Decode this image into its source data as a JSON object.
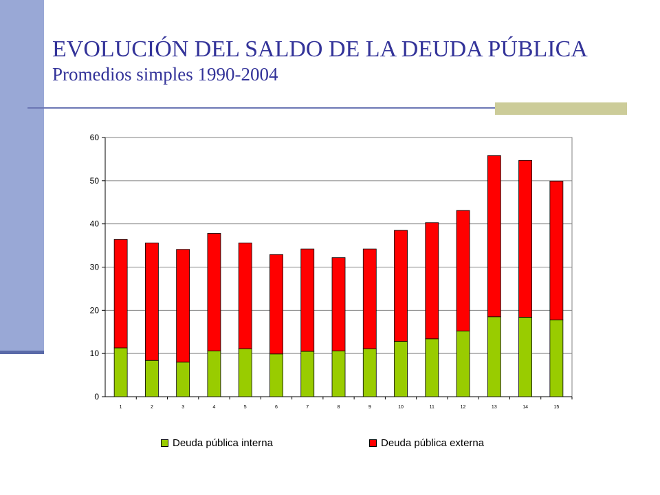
{
  "title": "EVOLUCIÓN DEL SALDO DE LA DEUDA PÚBLICA",
  "subtitle": "Promedios simples 1990-2004",
  "colors": {
    "accent_bar": "#99a8d6",
    "title_text": "#333399",
    "interna": "#99cc00",
    "externa": "#ff0000"
  },
  "chart_data": {
    "type": "bar",
    "stacked": true,
    "categories": [
      "1",
      "2",
      "3",
      "4",
      "5",
      "6",
      "7",
      "8",
      "9",
      "10",
      "11",
      "12",
      "13",
      "14",
      "15"
    ],
    "series": [
      {
        "name": "Deuda pública interna",
        "color": "#99cc00",
        "values": [
          11.3,
          8.4,
          8.0,
          10.6,
          11.1,
          9.9,
          10.5,
          10.6,
          11.1,
          12.8,
          13.4,
          15.2,
          18.5,
          18.4,
          17.8
        ]
      },
      {
        "name": "Deuda pública externa",
        "color": "#ff0000",
        "values": [
          25.1,
          27.2,
          26.1,
          27.2,
          24.5,
          23.0,
          23.7,
          21.6,
          23.1,
          25.7,
          26.9,
          27.9,
          37.3,
          36.3,
          32.1
        ]
      }
    ],
    "ylim": [
      0,
      60
    ],
    "yticks": [
      0,
      10,
      20,
      30,
      40,
      50,
      60
    ],
    "grid": true,
    "legend": "bottom"
  }
}
